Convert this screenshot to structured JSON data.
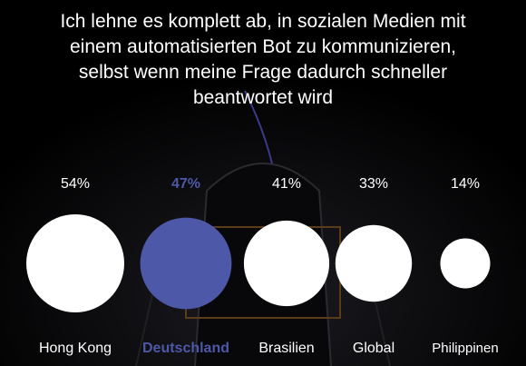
{
  "title_lines": [
    "Ich lehne es komplett ab, in sozialen Medien mit",
    "einem automatisierten Bot zu kommunizieren,",
    "selbst wenn meine Frage dadurch schneller",
    "beantwortet wird"
  ],
  "colors": {
    "background": "#000000",
    "text": "#ffffff",
    "bubble": "#ffffff",
    "highlight": "#4e58a8"
  },
  "chart_data": {
    "type": "bubble",
    "title": "Ich lehne es komplett ab, in sozialen Medien mit einem automatisierten Bot zu kommunizieren, selbst wenn meine Frage dadurch schneller beantwortet wird",
    "unit": "%",
    "categories": [
      "Hong Kong",
      "Deutschland",
      "Brasilien",
      "Global",
      "Philippinen"
    ],
    "values": [
      54,
      47,
      41,
      33,
      14
    ],
    "value_labels": [
      "54%",
      "47%",
      "41%",
      "33%",
      "14%"
    ],
    "highlighted": "Deutschland"
  }
}
